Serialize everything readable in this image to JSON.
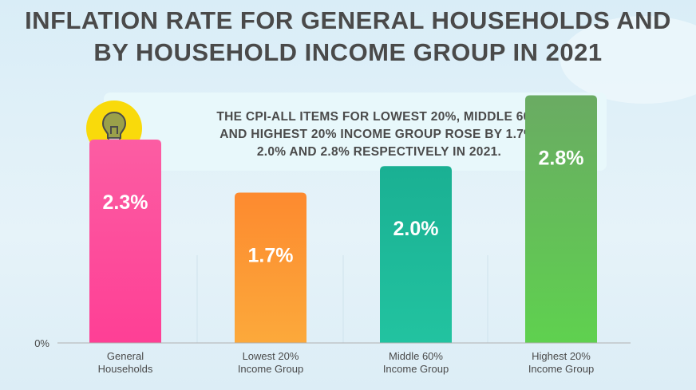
{
  "title_lines": [
    "INFLATION RATE FOR GENERAL HOUSEHOLDS AND",
    "BY HOUSEHOLD INCOME GROUP IN 2021"
  ],
  "callout": {
    "lines": [
      "THE CPI-ALL ITEMS FOR LOWEST 20%, MIDDLE 60%",
      "AND HIGHEST 20% INCOME GROUP ROSE BY 1.7%,",
      "2.0% AND 2.8% RESPECTIVELY IN 2021."
    ],
    "icon": "lightbulb-icon"
  },
  "chart_data": {
    "type": "bar",
    "categories": [
      [
        "General",
        "Households"
      ],
      [
        "Lowest 20%",
        "Income Group"
      ],
      [
        "Middle 60%",
        "Income Group"
      ],
      [
        "Highest 20%",
        "Income Group"
      ]
    ],
    "values": [
      2.3,
      1.7,
      2.0,
      2.8
    ],
    "data_labels": [
      "2.3%",
      "1.7%",
      "2.0%",
      "2.8%"
    ],
    "y_tick_labels": [
      "0%"
    ],
    "ylim": [
      0,
      3.4
    ],
    "bar_colors": [
      [
        "#fc5da3",
        "#fe3f95"
      ],
      [
        "#fd8a2f",
        "#fca93b"
      ],
      [
        "#1ab093",
        "#22c3a0"
      ],
      [
        "#6aab63",
        "#5fd14f"
      ]
    ],
    "grid": false,
    "legend": "none"
  }
}
